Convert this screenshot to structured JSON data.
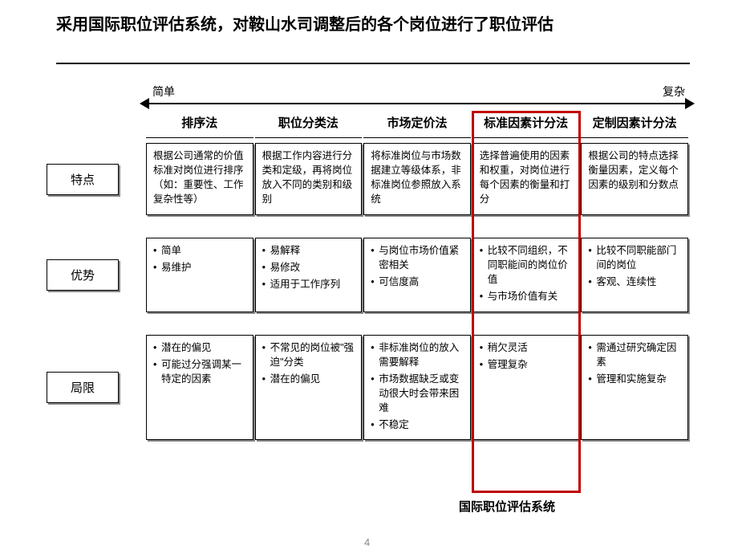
{
  "title": "采用国际职位评估系统，对鞍山水司调整后的各个岗位进行了职位评估",
  "axis": {
    "left": "简单",
    "right": "复杂"
  },
  "columns": [
    "排序法",
    "职位分类法",
    "市场定价法",
    "标准因素计分法",
    "定制因素计分法"
  ],
  "rows": [
    {
      "label": "特点",
      "cells": [
        {
          "type": "text",
          "text": "根据公司通常的价值标准对岗位进行排序（如：重要性、工作复杂性等）"
        },
        {
          "type": "text",
          "text": "根据工作内容进行分类和定级，再将岗位放入不同的类别和级别"
        },
        {
          "type": "text",
          "text": "将标准岗位与市场数据建立等级体系，非标准岗位参照放入系统"
        },
        {
          "type": "text",
          "text": "选择普遍使用的因素和权重，对岗位进行每个因素的衡量和打分"
        },
        {
          "type": "text",
          "text": "根据公司的特点选择衡量因素，定义每个因素的级别和分数点"
        }
      ]
    },
    {
      "label": "优势",
      "cells": [
        {
          "type": "list",
          "items": [
            "简单",
            "易维护"
          ]
        },
        {
          "type": "list",
          "items": [
            "易解释",
            "易修改",
            "适用于工作序列"
          ]
        },
        {
          "type": "list",
          "items": [
            "与岗位市场价值紧密相关",
            "可信度高"
          ]
        },
        {
          "type": "list",
          "items": [
            "比较不同组织，不同职能间的岗位价值",
            "与市场价值有关"
          ]
        },
        {
          "type": "list",
          "items": [
            "比较不同职能部门间的岗位",
            "客观、连续性"
          ]
        }
      ]
    },
    {
      "label": "局限",
      "cells": [
        {
          "type": "list",
          "items": [
            "潜在的偏见",
            "可能过分强调某一特定的因素"
          ]
        },
        {
          "type": "list",
          "items": [
            "不常见的岗位被\"强迫\"分类",
            "潜在的偏见"
          ]
        },
        {
          "type": "list",
          "items": [
            "非标准岗位的放入需要解释",
            "市场数据缺乏或变动很大时会带来困难",
            "不稳定"
          ]
        },
        {
          "type": "list",
          "items": [
            "稍欠灵活",
            "管理复杂"
          ]
        },
        {
          "type": "list",
          "items": [
            "需通过研究确定因素",
            "管理和实施复杂"
          ]
        }
      ]
    }
  ],
  "highlight": {
    "column_index": 3,
    "label": "国际职位评估系统",
    "border_color": "#c00000"
  },
  "page_number": "4",
  "colors": {
    "background": "#ffffff",
    "text": "#000000",
    "shadow": "#888888",
    "page_num": "#888888"
  }
}
